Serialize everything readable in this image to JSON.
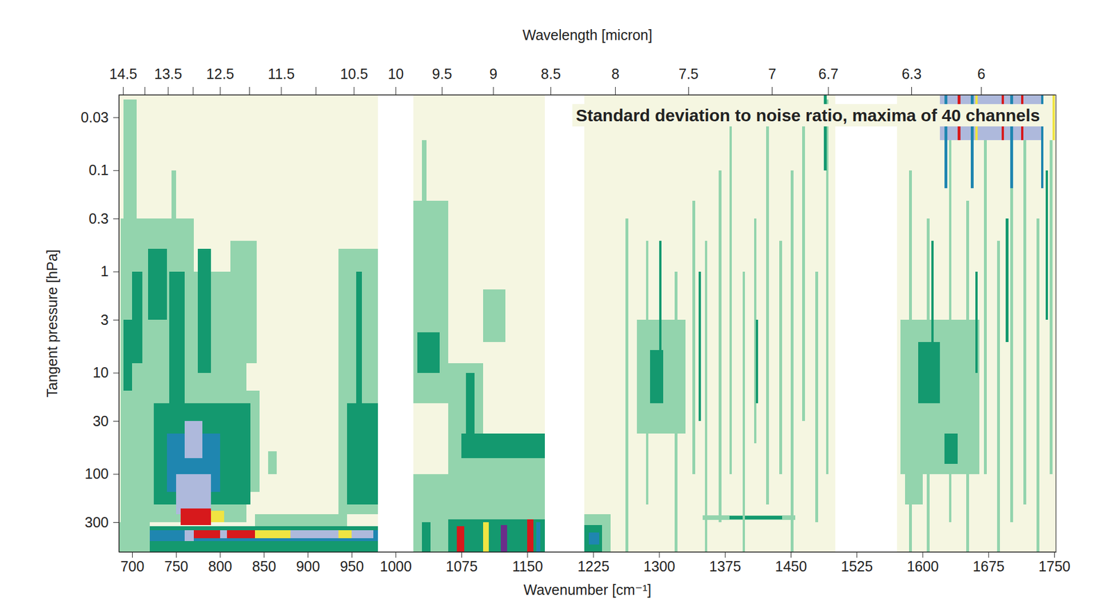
{
  "chart_data": {
    "type": "heatmap",
    "title": "Standard deviation to noise ratio, maxima of 40 channels",
    "xlabel": "Wavenumber [cm⁻¹]",
    "ylabel": "Tangent pressure [hPa]",
    "x2label": "Wavelength [micron]",
    "xlim": [
      685,
      1752
    ],
    "xticks": [
      700,
      750,
      800,
      850,
      900,
      950,
      1000,
      1075,
      1150,
      1225,
      1300,
      1375,
      1450,
      1525,
      1600,
      1675,
      1750
    ],
    "x2lim": [
      14.6,
      5.71
    ],
    "x2ticks": [
      14.5,
      {
        "value": 14,
        "label": null
      },
      13.5,
      {
        "value": 13,
        "label": null
      },
      12.5,
      {
        "value": 12,
        "label": null
      },
      11.5,
      {
        "value": 11,
        "label": null
      },
      10.5,
      10,
      9.5,
      9,
      8.5,
      8,
      7.5,
      7,
      6.7,
      6.3,
      6
    ],
    "ylim": [
      590,
      0.018
    ],
    "yticks": [
      0.03,
      0.1,
      0.3,
      1,
      3,
      10,
      30,
      100,
      300
    ],
    "log": "y",
    "colors": [
      "#f5f6e1",
      "#93d4ad",
      "#14996f",
      "#1f86b0",
      "#aeb9dc",
      "#f0e442",
      "#d7191c",
      "#6b2d8a"
    ],
    "cells": [
      {
        "x": [
          685,
          980
        ],
        "y": [
          590,
          0.018
        ],
        "value": 0
      },
      {
        "x": [
          1020,
          1170
        ],
        "y": [
          590,
          0.018
        ],
        "value": 0
      },
      {
        "x": [
          1215,
          1501
        ],
        "y": [
          590,
          0.018
        ],
        "value": 0
      },
      {
        "x": [
          1571,
          1752
        ],
        "y": [
          590,
          0.018
        ],
        "value": 0
      },
      {
        "x": [
          687,
          770
        ],
        "y": [
          300,
          0.3
        ],
        "value": 1
      },
      {
        "x": [
          770,
          830
        ],
        "y": [
          300,
          1
        ],
        "value": 1
      },
      {
        "x": [
          812,
          842
        ],
        "y": [
          8,
          0.5
        ],
        "value": 1
      },
      {
        "x": [
          830,
          845
        ],
        "y": [
          150,
          15
        ],
        "value": 1
      },
      {
        "x": [
          690,
          705
        ],
        "y": [
          0.3,
          0.02
        ],
        "value": 1
      },
      {
        "x": [
          745,
          750
        ],
        "y": [
          0.6,
          0.1
        ],
        "value": 1
      },
      {
        "x": [
          685,
          720
        ],
        "y": [
          590,
          300
        ],
        "value": 1
      },
      {
        "x": [
          840,
          945
        ],
        "y": [
          330,
          250
        ],
        "value": 1
      },
      {
        "x": [
          855,
          865
        ],
        "y": [
          100,
          60
        ],
        "value": 1
      },
      {
        "x": [
          935,
          980
        ],
        "y": [
          250,
          0.6
        ],
        "value": 1
      },
      {
        "x": [
          690,
          700
        ],
        "y": [
          15,
          3
        ],
        "value": 2
      },
      {
        "x": [
          700,
          712
        ],
        "y": [
          8,
          1
        ],
        "value": 2
      },
      {
        "x": [
          718,
          740
        ],
        "y": [
          3,
          0.6
        ],
        "value": 2
      },
      {
        "x": [
          742,
          760
        ],
        "y": [
          30,
          1
        ],
        "value": 2
      },
      {
        "x": [
          775,
          790
        ],
        "y": [
          10,
          0.6
        ],
        "value": 2
      },
      {
        "x": [
          725,
          835
        ],
        "y": [
          200,
          20
        ],
        "value": 2
      },
      {
        "x": [
          945,
          980
        ],
        "y": [
          200,
          20
        ],
        "value": 2
      },
      {
        "x": [
          955,
          962
        ],
        "y": [
          20,
          1
        ],
        "value": 2
      },
      {
        "x": [
          740,
          800
        ],
        "y": [
          150,
          40
        ],
        "value": 3
      },
      {
        "x": [
          750,
          790
        ],
        "y": [
          250,
          100
        ],
        "value": 4
      },
      {
        "x": [
          760,
          780
        ],
        "y": [
          70,
          30
        ],
        "value": 4
      },
      {
        "x": [
          720,
          980
        ],
        "y": [
          590,
          330
        ],
        "value": 3
      },
      {
        "x": [
          720,
          980
        ],
        "y": [
          360,
          330
        ],
        "value": 2
      },
      {
        "x": [
          720,
          980
        ],
        "y": [
          590,
          460
        ],
        "value": 2
      },
      {
        "x": [
          760,
          770
        ],
        "y": [
          460,
          360
        ],
        "value": 4
      },
      {
        "x": [
          770,
          800
        ],
        "y": [
          430,
          360
        ],
        "value": 6
      },
      {
        "x": [
          800,
          808
        ],
        "y": [
          430,
          360
        ],
        "value": 4
      },
      {
        "x": [
          808,
          840
        ],
        "y": [
          430,
          360
        ],
        "value": 6
      },
      {
        "x": [
          840,
          880
        ],
        "y": [
          430,
          360
        ],
        "value": 5
      },
      {
        "x": [
          880,
          935
        ],
        "y": [
          430,
          360
        ],
        "value": 4
      },
      {
        "x": [
          935,
          950
        ],
        "y": [
          430,
          360
        ],
        "value": 5
      },
      {
        "x": [
          950,
          975
        ],
        "y": [
          430,
          360
        ],
        "value": 4
      },
      {
        "x": [
          755,
          790
        ],
        "y": [
          320,
          220
        ],
        "value": 6
      },
      {
        "x": [
          790,
          805
        ],
        "y": [
          300,
          230
        ],
        "value": 5
      },
      {
        "x": [
          1020,
          1060
        ],
        "y": [
          20,
          0.2
        ],
        "value": 1
      },
      {
        "x": [
          1030,
          1035
        ],
        "y": [
          0.2,
          0.05
        ],
        "value": 1
      },
      {
        "x": [
          1020,
          1060
        ],
        "y": [
          590,
          100
        ],
        "value": 1
      },
      {
        "x": [
          1060,
          1100
        ],
        "y": [
          590,
          8
        ],
        "value": 1
      },
      {
        "x": [
          1100,
          1170
        ],
        "y": [
          590,
          40
        ],
        "value": 1
      },
      {
        "x": [
          1100,
          1125
        ],
        "y": [
          5,
          1.5
        ],
        "value": 1
      },
      {
        "x": [
          1025,
          1050
        ],
        "y": [
          10,
          4
        ],
        "value": 2
      },
      {
        "x": [
          1075,
          1170
        ],
        "y": [
          70,
          40
        ],
        "value": 2
      },
      {
        "x": [
          1080,
          1090
        ],
        "y": [
          40,
          10
        ],
        "value": 2
      },
      {
        "x": [
          1060,
          1170
        ],
        "y": [
          590,
          280
        ],
        "value": 2
      },
      {
        "x": [
          1030,
          1040
        ],
        "y": [
          590,
          300
        ],
        "value": 2
      },
      {
        "x": [
          1070,
          1078
        ],
        "y": [
          590,
          330
        ],
        "value": 6
      },
      {
        "x": [
          1100,
          1106
        ],
        "y": [
          590,
          300
        ],
        "value": 5
      },
      {
        "x": [
          1120,
          1127
        ],
        "y": [
          590,
          320
        ],
        "value": 7
      },
      {
        "x": [
          1150,
          1157
        ],
        "y": [
          590,
          280
        ],
        "value": 6
      },
      {
        "x": [
          1160,
          1165
        ],
        "y": [
          590,
          300
        ],
        "value": 3
      },
      {
        "x": [
          1215,
          1245
        ],
        "y": [
          590,
          250
        ],
        "value": 1
      },
      {
        "x": [
          1215,
          1235
        ],
        "y": [
          590,
          320
        ],
        "value": 2
      },
      {
        "x": [
          1220,
          1232
        ],
        "y": [
          500,
          380
        ],
        "value": 3
      },
      {
        "x": [
          1275,
          1330
        ],
        "y": [
          40,
          3
        ],
        "value": 1
      },
      {
        "x": [
          1290,
          1305
        ],
        "y": [
          20,
          6
        ],
        "value": 2
      },
      {
        "x": [
          1350,
          1455
        ],
        "y": [
          285,
          255
        ],
        "value": 1
      },
      {
        "x": [
          1380,
          1440
        ],
        "y": [
          280,
          260
        ],
        "value": 2
      },
      {
        "x": [
          1262,
          1265
        ],
        "y": [
          590,
          0.3
        ],
        "value": 1
      },
      {
        "x": [
          1285,
          1288
        ],
        "y": [
          200,
          0.5
        ],
        "value": 1
      },
      {
        "x": [
          1318,
          1321
        ],
        "y": [
          590,
          1
        ],
        "value": 1
      },
      {
        "x": [
          1338,
          1341
        ],
        "y": [
          100,
          0.2
        ],
        "value": 1
      },
      {
        "x": [
          1352,
          1355
        ],
        "y": [
          590,
          0.5
        ],
        "value": 1
      },
      {
        "x": [
          1368,
          1371
        ],
        "y": [
          300,
          0.1
        ],
        "value": 1
      },
      {
        "x": [
          1380,
          1383
        ],
        "y": [
          100,
          0.03
        ],
        "value": 1
      },
      {
        "x": [
          1395,
          1398
        ],
        "y": [
          590,
          1
        ],
        "value": 1
      },
      {
        "x": [
          1408,
          1411
        ],
        "y": [
          50,
          0.3
        ],
        "value": 1
      },
      {
        "x": [
          1422,
          1425
        ],
        "y": [
          200,
          0.03
        ],
        "value": 1
      },
      {
        "x": [
          1437,
          1440
        ],
        "y": [
          100,
          0.5
        ],
        "value": 1
      },
      {
        "x": [
          1450,
          1453
        ],
        "y": [
          590,
          0.1
        ],
        "value": 1
      },
      {
        "x": [
          1463,
          1466
        ],
        "y": [
          30,
          0.03
        ],
        "value": 1
      },
      {
        "x": [
          1478,
          1481
        ],
        "y": [
          300,
          1
        ],
        "value": 1
      },
      {
        "x": [
          1490,
          1493
        ],
        "y": [
          100,
          0.02
        ],
        "value": 1
      },
      {
        "x": [
          1300,
          1303
        ],
        "y": [
          10,
          0.5
        ],
        "value": 2
      },
      {
        "x": [
          1345,
          1348
        ],
        "y": [
          30,
          1
        ],
        "value": 2
      },
      {
        "x": [
          1410,
          1413
        ],
        "y": [
          20,
          3
        ],
        "value": 2
      },
      {
        "x": [
          1488,
          1491
        ],
        "y": [
          0.1,
          0.018
        ],
        "value": 2
      },
      {
        "x": [
          1575,
          1665
        ],
        "y": [
          100,
          3
        ],
        "value": 1
      },
      {
        "x": [
          1580,
          1600
        ],
        "y": [
          200,
          30
        ],
        "value": 1
      },
      {
        "x": [
          1585,
          1588
        ],
        "y": [
          590,
          0.1
        ],
        "value": 1
      },
      {
        "x": [
          1605,
          1608
        ],
        "y": [
          590,
          0.3
        ],
        "value": 1
      },
      {
        "x": [
          1630,
          1633
        ],
        "y": [
          300,
          0.05
        ],
        "value": 1
      },
      {
        "x": [
          1650,
          1653
        ],
        "y": [
          590,
          0.2
        ],
        "value": 1
      },
      {
        "x": [
          1670,
          1673
        ],
        "y": [
          100,
          0.03
        ],
        "value": 1
      },
      {
        "x": [
          1685,
          1688
        ],
        "y": [
          590,
          0.5
        ],
        "value": 1
      },
      {
        "x": [
          1700,
          1703
        ],
        "y": [
          300,
          0.1
        ],
        "value": 1
      },
      {
        "x": [
          1715,
          1718
        ],
        "y": [
          200,
          0.02
        ],
        "value": 1
      },
      {
        "x": [
          1730,
          1733
        ],
        "y": [
          590,
          0.3
        ],
        "value": 1
      },
      {
        "x": [
          1745,
          1748
        ],
        "y": [
          100,
          0.05
        ],
        "value": 1
      },
      {
        "x": [
          1595,
          1620
        ],
        "y": [
          20,
          5
        ],
        "value": 2
      },
      {
        "x": [
          1625,
          1640
        ],
        "y": [
          80,
          40
        ],
        "value": 2
      },
      {
        "x": [
          1610,
          1613
        ],
        "y": [
          20,
          0.5
        ],
        "value": 2
      },
      {
        "x": [
          1660,
          1663
        ],
        "y": [
          10,
          1
        ],
        "value": 2
      },
      {
        "x": [
          1695,
          1698
        ],
        "y": [
          5,
          0.3
        ],
        "value": 2
      },
      {
        "x": [
          1740,
          1743
        ],
        "y": [
          3,
          0.1
        ],
        "value": 2
      },
      {
        "x": [
          1620,
          1735
        ],
        "y": [
          0.05,
          0.018
        ],
        "value": 4
      },
      {
        "x": [
          1625,
          1628
        ],
        "y": [
          0.15,
          0.018
        ],
        "value": 3
      },
      {
        "x": [
          1655,
          1658
        ],
        "y": [
          0.15,
          0.018
        ],
        "value": 3
      },
      {
        "x": [
          1700,
          1703
        ],
        "y": [
          0.15,
          0.018
        ],
        "value": 3
      },
      {
        "x": [
          1735,
          1738
        ],
        "y": [
          0.15,
          0.018
        ],
        "value": 3
      },
      {
        "x": [
          1640,
          1643
        ],
        "y": [
          0.05,
          0.018
        ],
        "value": 6
      },
      {
        "x": [
          1690,
          1693
        ],
        "y": [
          0.05,
          0.018
        ],
        "value": 6
      },
      {
        "x": [
          1712,
          1715
        ],
        "y": [
          0.05,
          0.018
        ],
        "value": 6
      },
      {
        "x": [
          1660,
          1663
        ],
        "y": [
          0.05,
          0.018
        ],
        "value": 5
      },
      {
        "x": [
          1748,
          1751
        ],
        "y": [
          0.05,
          0.018
        ],
        "value": 5
      }
    ]
  }
}
